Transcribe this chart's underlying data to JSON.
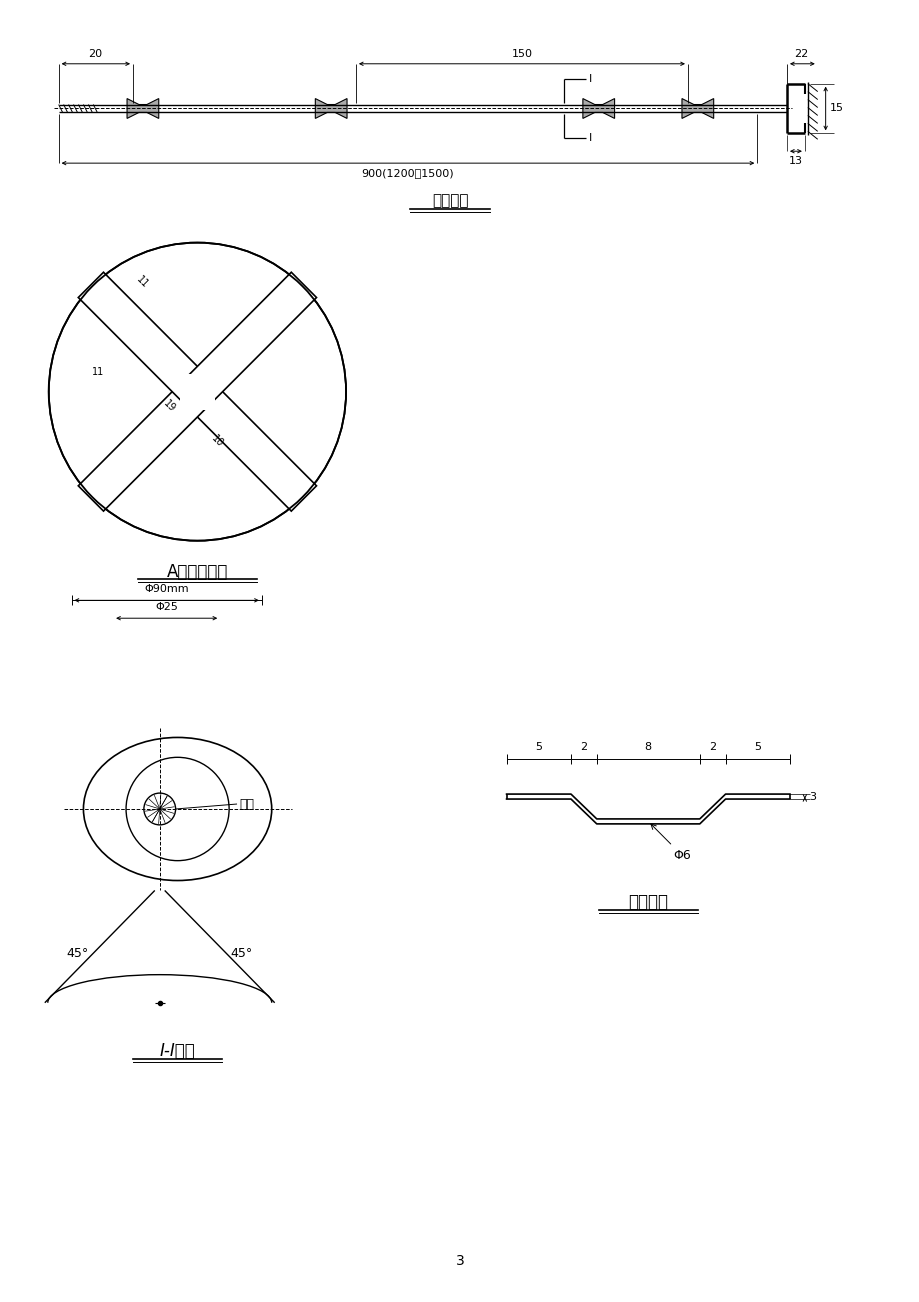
{
  "bg_color": "#ffffff",
  "title_anchor_detail": "锚杆详图",
  "title_A_node": "A节点大样图",
  "title_II": "I-I剖面",
  "title_bracket": "支架详图",
  "dim_20": "20",
  "dim_150": "150",
  "dim_22": "22",
  "dim_900": "900(1200、1500)",
  "dim_15": "15",
  "dim_13": "13",
  "dim_phi90": "Φ90mm",
  "dim_phi25": "Φ25",
  "dim_phi6": "Φ6",
  "dim_5_2_8_2_5": [
    "5",
    "2",
    "8",
    "2",
    "5"
  ],
  "dim_3": "3",
  "dim_45_left": "45°",
  "dim_45_right": "45°",
  "label_bracket": "支架",
  "page_num": "3"
}
